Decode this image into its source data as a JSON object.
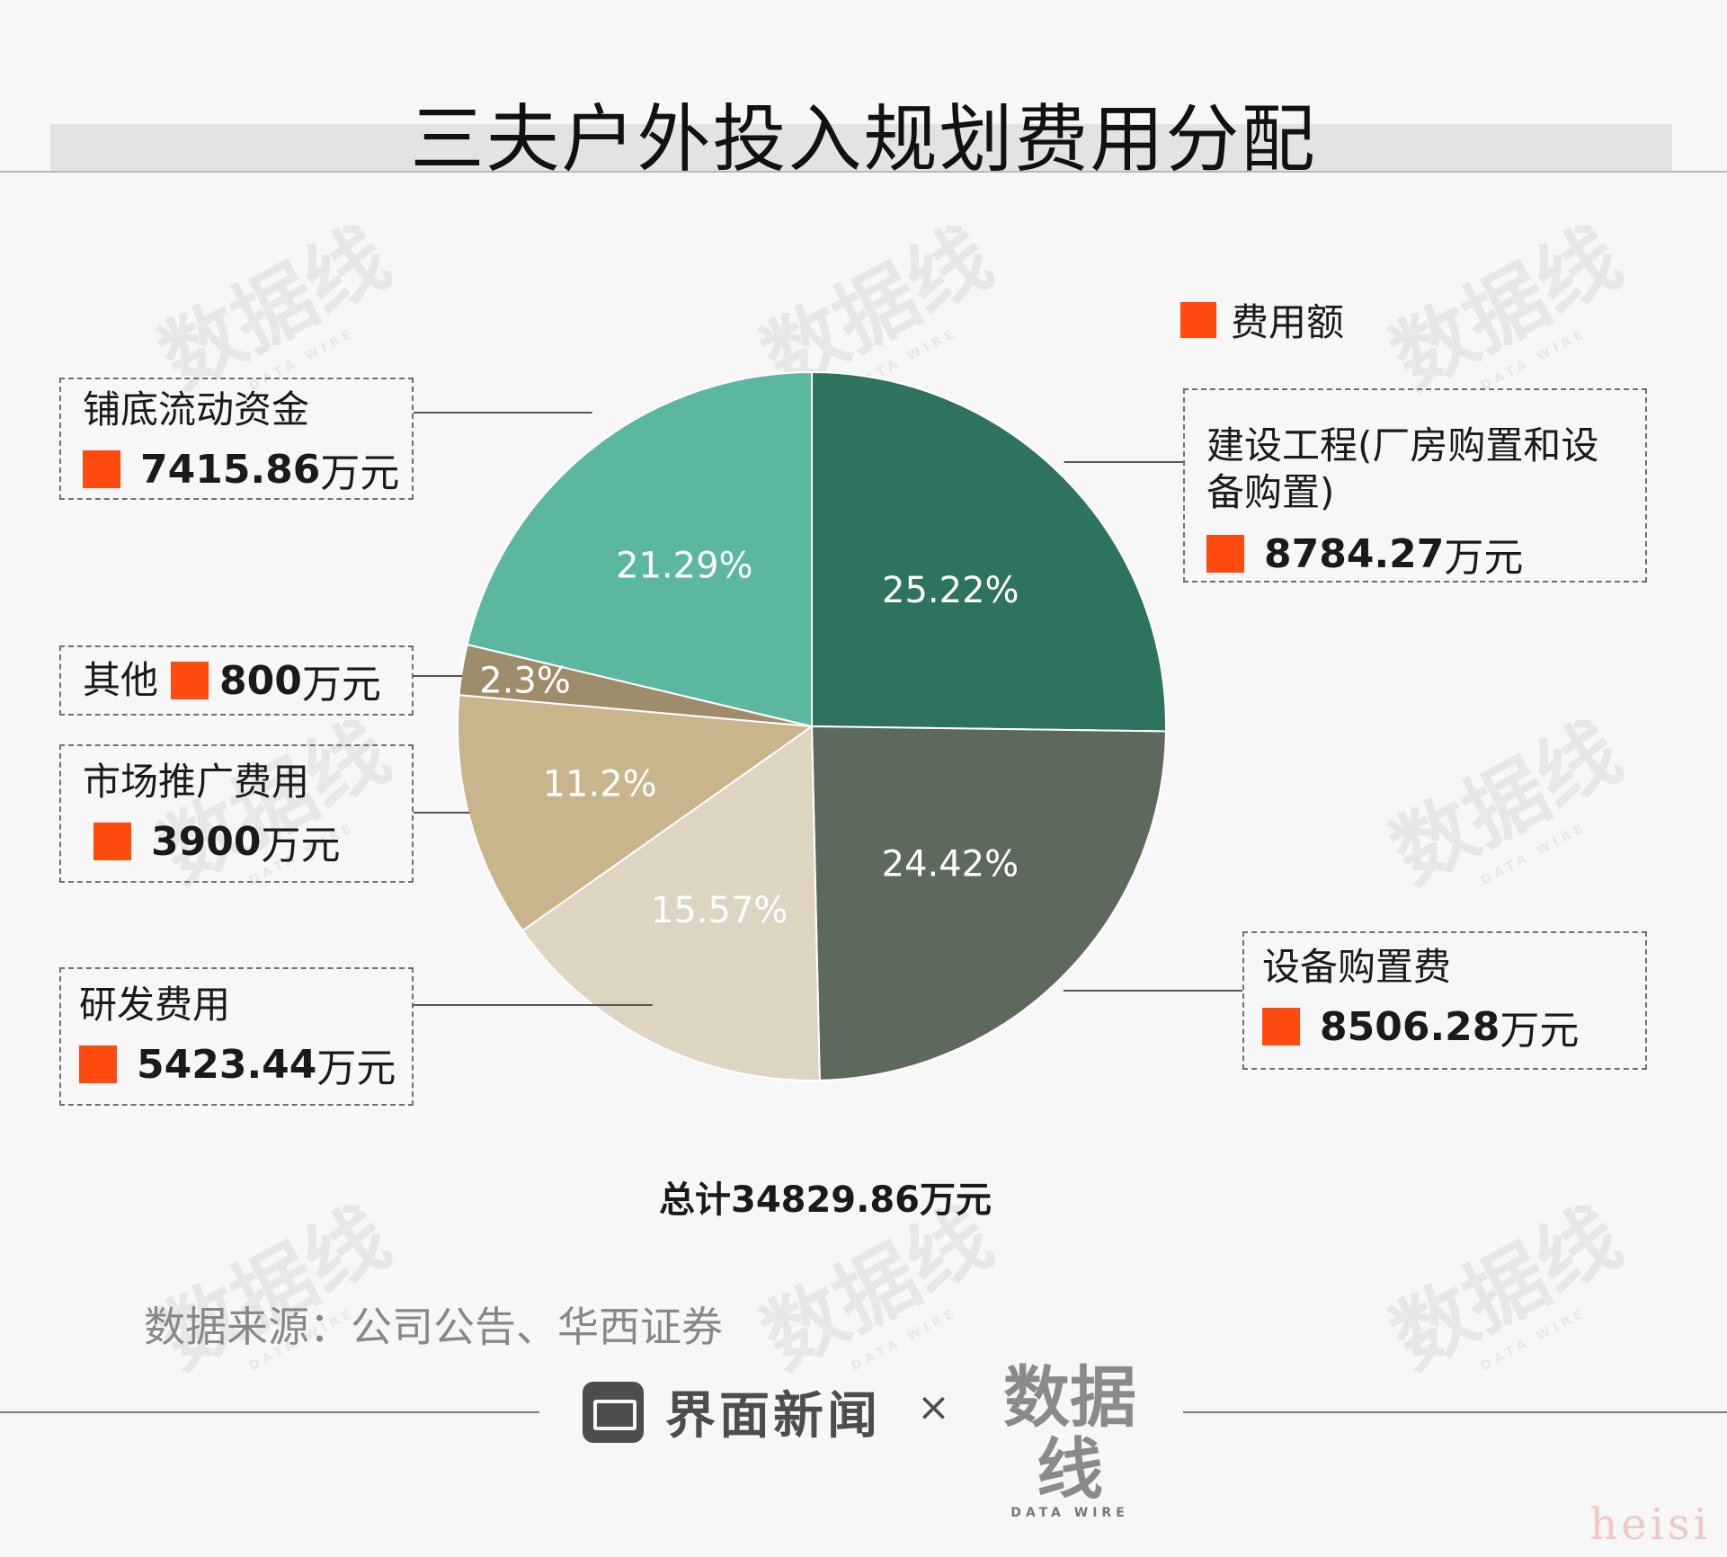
{
  "chart_data": {
    "type": "pie",
    "title": "三夫户外投入规划费用分配",
    "legend": {
      "label": "费用额",
      "color": "#ff4a10",
      "position": "top-right"
    },
    "unit": "万元",
    "slices": [
      {
        "name": "建设工程(厂房购置和设备购置)",
        "name_lines": [
          "建设工程(厂房购置和设",
          "备购置)"
        ],
        "value": 8784.27,
        "value_text": "8784.27",
        "percent_label": "25.22%",
        "color": "#2e7260"
      },
      {
        "name": "设备购置费",
        "name_lines": [
          "设备购置费"
        ],
        "value": 8506.28,
        "value_text": "8506.28",
        "percent_label": "24.42%",
        "color": "#5e695d"
      },
      {
        "name": "研发费用",
        "name_lines": [
          "研发费用"
        ],
        "value": 5423.44,
        "value_text": "5423.44",
        "percent_label": "15.57%",
        "color": "#ddd4c1"
      },
      {
        "name": "市场推广费用",
        "name_lines": [
          "市场推广费用"
        ],
        "value": 3900,
        "value_text": "3900",
        "percent_label": "11.2%",
        "color": "#c9b58c"
      },
      {
        "name": "其他",
        "name_lines": [
          "其他"
        ],
        "value": 800,
        "value_text": "800",
        "percent_label": "2.3%",
        "color": "#9d8d6b"
      },
      {
        "name": "铺底流动资金",
        "name_lines": [
          "铺底流动资金"
        ],
        "value": 7415.86,
        "value_text": "7415.86",
        "percent_label": "21.29%",
        "color": "#5cb7a0"
      }
    ],
    "total_text": "总计34829.86万元"
  },
  "source": "数据来源：公司公告、华西证券",
  "footer": {
    "brand": "界面新闻",
    "separator": "×",
    "partner": "数据线",
    "partner_sub": "DATA WIRE"
  },
  "watermark": {
    "text": "数据线",
    "sub": "DATA WIRE"
  },
  "corner_mark": "heisi"
}
